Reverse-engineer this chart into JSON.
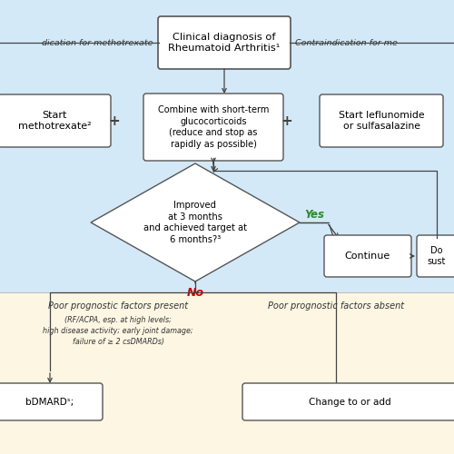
{
  "bg_blue": "#d4e9f7",
  "bg_yellow": "#fdf6e3",
  "box_bg": "#ffffff",
  "box_border": "#555555",
  "arrow_color": "#444444",
  "yes_color": "#2d8a2d",
  "no_color": "#cc0000",
  "title": "Clinical diagnosis of\nRheumatoid Arthritis¹",
  "italic_left": "dication for methotrexate",
  "italic_right": "Contraindication for me",
  "box1_text": "Start\nmethotrexate²",
  "box2_text": "Combine with short-term\nglucocorticoids\n(reduce and stop as\nrapidly as possible)",
  "box3_text": "Start leflunomide\nor sulfasalazine",
  "diamond_text": "Improved\nat 3 months\nand achieved target at\n6 months?³",
  "continue_text": "Continue",
  "do_text": "Do\nsust",
  "poor_present": "Poor prognostic factors present",
  "poor_absent": "Poor prognostic factors absent",
  "poor_present_sub": "(RF/ACPA, esp. at high levels;\nhigh disease activity; early joint damage;\nfailure of ≥ 2 csDMARDs)",
  "bdmard_text": "bDMARDˢ;",
  "change_text": "Change to or add",
  "plus_color": "#444444",
  "line_color": "#444444",
  "figsize": [
    5.0,
    5.0
  ],
  "dpi": 100
}
